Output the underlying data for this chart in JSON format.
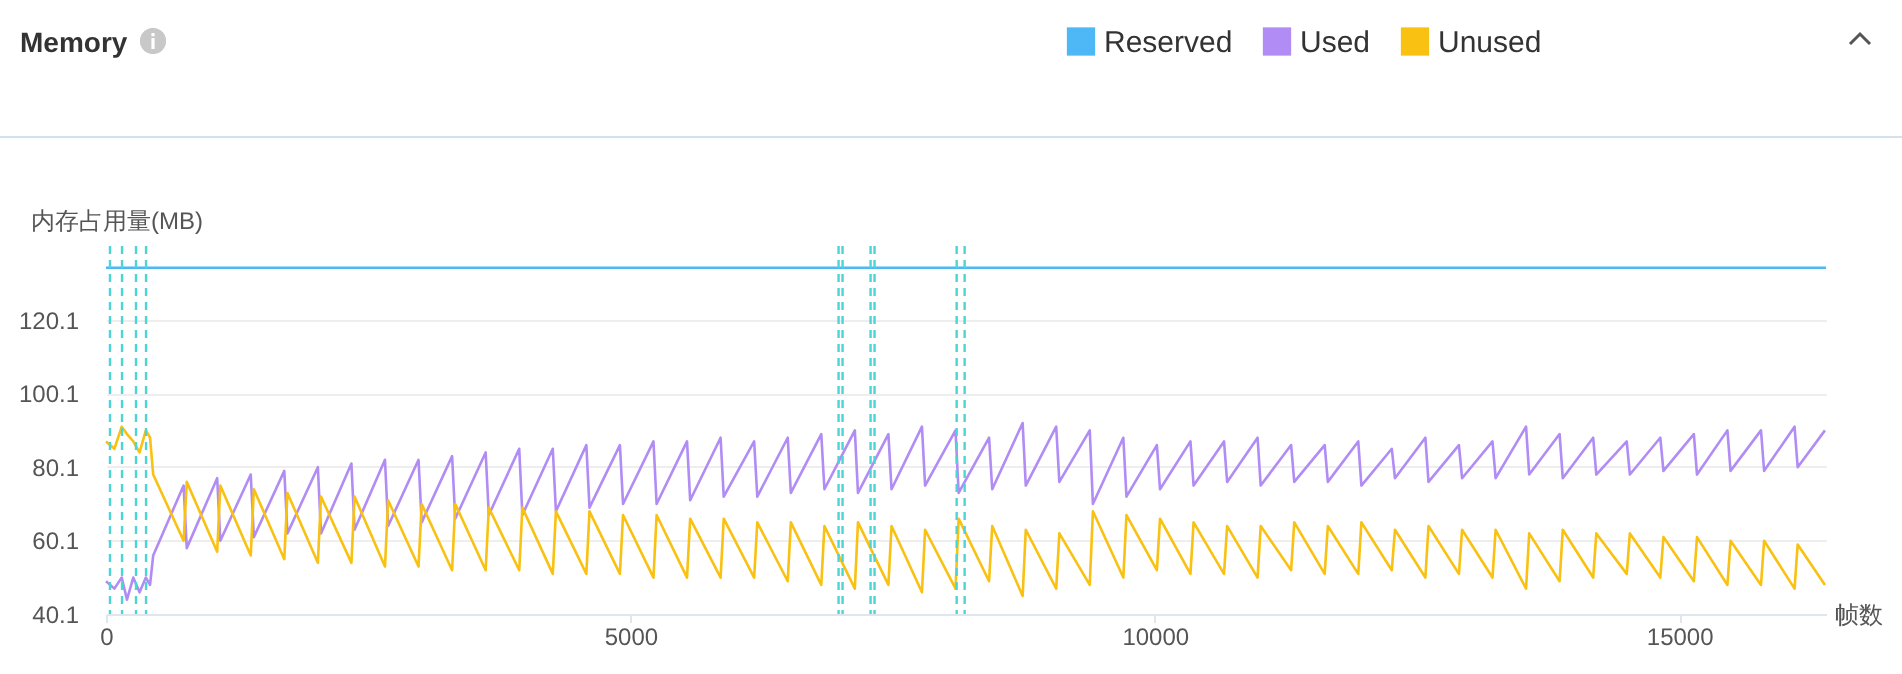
{
  "chart_data": {
    "type": "line",
    "title": "Memory",
    "ylabel": "内存占用量(MB)",
    "xlabel": "帧数",
    "xlim": [
      0,
      16400
    ],
    "xticks": [
      0,
      5000,
      10000,
      15000
    ],
    "ylim": [
      40.1,
      140.1
    ],
    "yticks": [
      40.1,
      60.1,
      80.1,
      100.1,
      120.1
    ],
    "grid": "y",
    "legend": "top right",
    "line_style": "solid",
    "x": [
      0,
      80,
      150,
      200,
      260,
      320,
      380,
      420,
      450,
      740,
      770,
      1060,
      1090,
      1380,
      1410,
      1700,
      1730,
      2020,
      2050,
      2340,
      2370,
      2660,
      2690,
      2980,
      3010,
      3300,
      3330,
      3620,
      3650,
      3940,
      3970,
      4260,
      4290,
      4580,
      4610,
      4900,
      4930,
      5220,
      5250,
      5540,
      5570,
      5860,
      5890,
      6180,
      6210,
      6500,
      6530,
      6820,
      6850,
      7140,
      7170,
      7460,
      7490,
      7780,
      7810,
      8100,
      8130,
      8420,
      8450,
      8740,
      8770,
      9060,
      9090,
      9380,
      9410,
      9700,
      9730,
      10020,
      10050,
      10340,
      10370,
      10660,
      10690,
      10980,
      11010,
      11300,
      11330,
      11620,
      11650,
      11940,
      11970,
      12260,
      12290,
      12580,
      12610,
      12900,
      12930,
      13220,
      13250,
      13540,
      13570,
      13860,
      13890,
      14180,
      14210,
      14500,
      14530,
      14820,
      14850,
      15140,
      15170,
      15460,
      15490,
      15780,
      15810,
      16100,
      16130,
      16390
    ],
    "series": [
      {
        "name": "Reserved",
        "color": "#4db8f5",
        "x": [
          0,
          16400
        ],
        "values": [
          134.2,
          134.2
        ]
      },
      {
        "name": "Used",
        "color": "#b18cf5",
        "values": [
          49,
          47,
          50,
          44,
          50,
          46,
          50,
          48,
          56,
          75,
          58,
          77,
          60,
          78,
          61,
          79,
          62,
          80,
          62,
          81,
          63,
          82,
          64,
          82,
          65,
          83,
          66,
          84,
          67,
          85,
          67,
          85,
          68,
          86,
          69,
          86,
          70,
          87,
          70,
          87,
          71,
          88,
          72,
          87,
          72,
          88,
          73,
          89,
          74,
          90,
          73,
          89,
          74,
          91,
          75,
          90,
          73,
          88,
          74,
          92,
          75,
          91,
          76,
          90,
          70,
          88,
          72,
          86,
          74,
          87,
          75,
          87,
          76,
          88,
          75,
          86,
          76,
          86,
          76,
          87,
          75,
          85,
          77,
          88,
          76,
          86,
          77,
          87,
          77,
          91,
          78,
          89,
          77,
          88,
          78,
          87,
          78,
          88,
          79,
          89,
          78,
          90,
          79,
          90,
          79,
          91,
          80,
          90
        ]
      },
      {
        "name": "Unused",
        "color": "#f9c112",
        "values": [
          87,
          85,
          91,
          89,
          87,
          84,
          90,
          88,
          78,
          60,
          76,
          57,
          75,
          56,
          74,
          55,
          73,
          54,
          72,
          54,
          72,
          53,
          71,
          53,
          70,
          52,
          70,
          52,
          69,
          52,
          69,
          51,
          68,
          51,
          68,
          51,
          67,
          50,
          67,
          50,
          66,
          50,
          66,
          50,
          65,
          49,
          65,
          48,
          64,
          47,
          65,
          48,
          64,
          46,
          63,
          47,
          66,
          49,
          64,
          45,
          63,
          47,
          62,
          48,
          68,
          50,
          67,
          52,
          66,
          51,
          65,
          51,
          64,
          50,
          64,
          52,
          65,
          51,
          64,
          51,
          65,
          52,
          63,
          50,
          64,
          51,
          63,
          50,
          63,
          47,
          62,
          49,
          63,
          50,
          62,
          51,
          62,
          50,
          61,
          49,
          61,
          48,
          60,
          48,
          60,
          47,
          59,
          48
        ]
      }
    ],
    "ref_lines": [
      {
        "axis": "x",
        "value": 38,
        "color": "#4dd4d4",
        "line_style": "dashed"
      },
      {
        "axis": "x",
        "value": 153,
        "color": "#4dd4d4",
        "line_style": "dashed"
      },
      {
        "axis": "x",
        "value": 286,
        "color": "#4dd4d4",
        "line_style": "dashed"
      },
      {
        "axis": "x",
        "value": 382,
        "color": "#4dd4d4",
        "line_style": "dashed"
      },
      {
        "axis": "x",
        "value": 6985,
        "color": "#4dd4d4",
        "line_style": "dashed"
      },
      {
        "axis": "x",
        "value": 7023,
        "color": "#4dd4d4",
        "line_style": "dashed"
      },
      {
        "axis": "x",
        "value": 7290,
        "color": "#4dd4d4",
        "line_style": "dashed"
      },
      {
        "axis": "x",
        "value": 7328,
        "color": "#4dd4d4",
        "line_style": "dashed"
      },
      {
        "axis": "x",
        "value": 8111,
        "color": "#4dd4d4",
        "line_style": "dashed"
      },
      {
        "axis": "x",
        "value": 8187,
        "color": "#4dd4d4",
        "line_style": "dashed"
      }
    ]
  }
}
